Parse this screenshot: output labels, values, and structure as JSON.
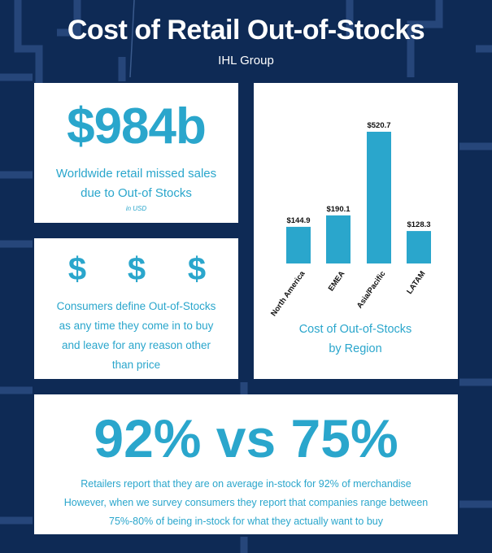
{
  "header": {
    "title": "Cost of Retail Out-of-Stocks",
    "subtitle": "IHL Group"
  },
  "card_missed_sales": {
    "stat": "$984b",
    "description_line1": "Worldwide retail missed sales",
    "description_line2": "due to Out-of Stocks",
    "note": "in USD"
  },
  "card_definition": {
    "icons": [
      "dollar-sign-icon",
      "dollar-sign-icon",
      "dollar-sign-icon"
    ],
    "icon_glyph": "$",
    "text_lines": [
      "Consumers define Out-of-Stocks",
      "as any time they come in to buy",
      "and leave for any reason other",
      "than price"
    ]
  },
  "card_comparison": {
    "stat": "92% vs 75%",
    "text_lines": [
      "Retailers report that they are on average in-stock for 92% of merchandise",
      "However, when we survey consumers they report that companies range between",
      "75%-80% of being in-stock for what they actually want to buy"
    ]
  },
  "colors": {
    "background": "#0e2a55",
    "accent": "#2aa6cc",
    "bar": "#2aa6cc",
    "card": "#ffffff"
  },
  "chart_data": {
    "type": "bar",
    "categories": [
      "North America",
      "EMEA",
      "Asia/Pacific",
      "LATAM"
    ],
    "values": [
      144.9,
      190.1,
      520.7,
      128.3
    ],
    "data_labels": [
      "$144.9",
      "$190.1",
      "$520.7",
      "$128.3"
    ],
    "title_line1": "Cost of Out-of-Stocks",
    "title_line2": "by Region",
    "ylim": [
      0,
      520.7
    ],
    "grid": false,
    "legend": "none"
  }
}
